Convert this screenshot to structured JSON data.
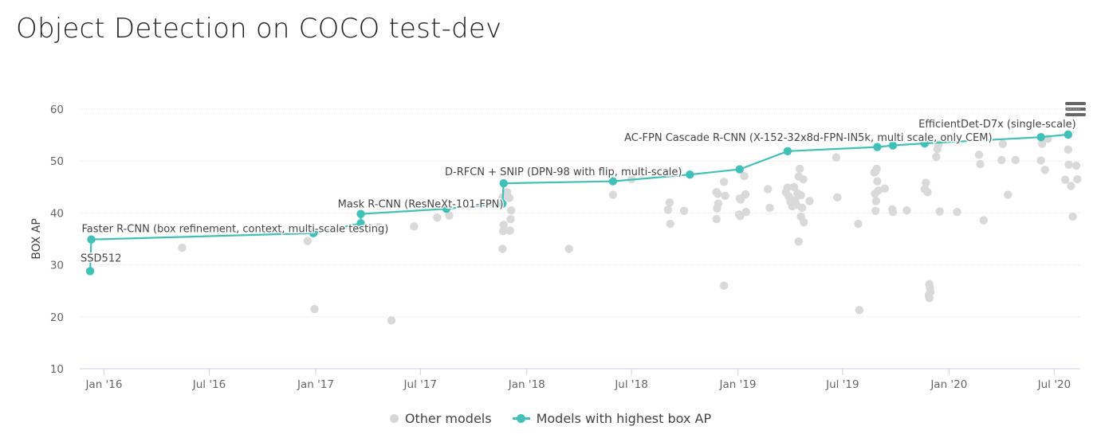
{
  "chart_data": {
    "type": "scatter",
    "title": "Object Detection on COCO test-dev",
    "ylabel": "BOX AP",
    "xlabel": "",
    "ylim": [
      10,
      60
    ],
    "yticks": [
      10,
      20,
      30,
      40,
      50,
      60
    ],
    "xlim": [
      "2015-11-20",
      "2020-08-15"
    ],
    "xticks": [
      {
        "date": "2016-01-01",
        "label": "Jan '16"
      },
      {
        "date": "2016-07-01",
        "label": "Jul '16"
      },
      {
        "date": "2017-01-01",
        "label": "Jan '17"
      },
      {
        "date": "2017-07-01",
        "label": "Jul '17"
      },
      {
        "date": "2018-01-01",
        "label": "Jan '18"
      },
      {
        "date": "2018-07-01",
        "label": "Jul '18"
      },
      {
        "date": "2019-01-01",
        "label": "Jan '19"
      },
      {
        "date": "2019-07-01",
        "label": "Jul '19"
      },
      {
        "date": "2020-01-01",
        "label": "Jan '20"
      },
      {
        "date": "2020-07-01",
        "label": "Jul '20"
      }
    ],
    "grid": true,
    "legend_position": "bottom-center",
    "series": [
      {
        "name": "Other models",
        "color": "#d9d9d9",
        "points": [
          [
            "2016-05-15",
            33.3
          ],
          [
            "2016-12-18",
            34.6
          ],
          [
            "2016-12-30",
            21.5
          ],
          [
            "2017-04-20",
            37.3
          ],
          [
            "2017-05-12",
            19.3
          ],
          [
            "2017-06-20",
            37.4
          ],
          [
            "2017-07-30",
            39.1
          ],
          [
            "2017-08-20",
            39.5
          ],
          [
            "2017-11-20",
            43.0
          ],
          [
            "2017-11-22",
            37.7
          ],
          [
            "2017-11-21",
            36.5
          ],
          [
            "2017-11-20",
            33.1
          ],
          [
            "2017-11-28",
            44.0
          ],
          [
            "2017-12-02",
            42.9
          ],
          [
            "2017-12-05",
            40.5
          ],
          [
            "2017-12-04",
            38.8
          ],
          [
            "2017-12-03",
            36.6
          ],
          [
            "2018-03-15",
            33.1
          ],
          [
            "2018-05-30",
            43.5
          ],
          [
            "2018-07-01",
            46.5
          ],
          [
            "2018-09-02",
            40.6
          ],
          [
            "2018-09-05",
            42.0
          ],
          [
            "2018-09-06",
            37.9
          ],
          [
            "2018-09-30",
            40.4
          ],
          [
            "2018-11-25",
            44.0
          ],
          [
            "2018-11-27",
            43.7
          ],
          [
            "2018-11-28",
            41.8
          ],
          [
            "2018-11-26",
            40.9
          ],
          [
            "2018-11-25",
            38.8
          ],
          [
            "2018-12-08",
            46.0
          ],
          [
            "2018-12-10",
            43.3
          ],
          [
            "2018-12-08",
            26.0
          ],
          [
            "2019-01-04",
            42.8
          ],
          [
            "2019-01-06",
            42.6
          ],
          [
            "2019-01-03",
            39.7
          ],
          [
            "2019-01-05",
            39.4
          ],
          [
            "2019-01-12",
            47.1
          ],
          [
            "2019-01-14",
            43.6
          ],
          [
            "2019-01-15",
            40.2
          ],
          [
            "2019-02-22",
            44.6
          ],
          [
            "2019-02-25",
            41.0
          ],
          [
            "2019-03-25",
            44.0
          ],
          [
            "2019-03-28",
            44.9
          ],
          [
            "2019-03-30",
            43.2
          ],
          [
            "2019-04-01",
            42.8
          ],
          [
            "2019-04-02",
            42.1
          ],
          [
            "2019-04-05",
            41.3
          ],
          [
            "2019-04-08",
            45.0
          ],
          [
            "2019-04-10",
            42.4
          ],
          [
            "2019-04-12",
            41.6
          ],
          [
            "2019-04-14",
            43.8
          ],
          [
            "2019-04-16",
            47.0
          ],
          [
            "2019-04-18",
            48.5
          ],
          [
            "2019-04-20",
            43.4
          ],
          [
            "2019-04-22",
            41.0
          ],
          [
            "2019-04-24",
            46.5
          ],
          [
            "2019-04-20",
            39.3
          ],
          [
            "2019-04-16",
            34.5
          ],
          [
            "2019-04-25",
            38.2
          ],
          [
            "2019-05-05",
            42.3
          ],
          [
            "2019-06-20",
            50.7
          ],
          [
            "2019-06-22",
            43.0
          ],
          [
            "2019-07-28",
            37.9
          ],
          [
            "2019-07-30",
            21.3
          ],
          [
            "2019-08-25",
            47.8
          ],
          [
            "2019-08-27",
            48.0
          ],
          [
            "2019-08-29",
            48.5
          ],
          [
            "2019-08-30",
            46.1
          ],
          [
            "2019-09-01",
            44.3
          ],
          [
            "2019-08-26",
            43.7
          ],
          [
            "2019-08-28",
            42.3
          ],
          [
            "2019-08-27",
            40.4
          ],
          [
            "2019-09-12",
            44.7
          ],
          [
            "2019-09-25",
            40.7
          ],
          [
            "2019-09-26",
            40.2
          ],
          [
            "2019-10-20",
            40.5
          ],
          [
            "2019-11-22",
            45.8
          ],
          [
            "2019-11-20",
            44.6
          ],
          [
            "2019-11-25",
            44.0
          ],
          [
            "2019-11-28",
            26.3
          ],
          [
            "2019-11-29",
            25.6
          ],
          [
            "2019-11-30",
            24.8
          ],
          [
            "2019-11-27",
            24.2
          ],
          [
            "2019-11-28",
            23.6
          ],
          [
            "2019-12-10",
            50.8
          ],
          [
            "2019-12-12",
            52.3
          ],
          [
            "2019-12-14",
            53.2
          ],
          [
            "2019-12-16",
            40.3
          ],
          [
            "2020-01-15",
            40.2
          ],
          [
            "2020-02-22",
            51.2
          ],
          [
            "2020-02-24",
            49.4
          ],
          [
            "2020-03-01",
            38.6
          ],
          [
            "2020-04-01",
            50.2
          ],
          [
            "2020-04-03",
            53.3
          ],
          [
            "2020-04-12",
            43.5
          ],
          [
            "2020-04-25",
            50.2
          ],
          [
            "2020-06-08",
            50.1
          ],
          [
            "2020-06-10",
            53.3
          ],
          [
            "2020-06-15",
            48.3
          ],
          [
            "2020-06-20",
            54.3
          ],
          [
            "2020-07-20",
            46.4
          ],
          [
            "2020-07-25",
            52.2
          ],
          [
            "2020-07-26",
            49.3
          ],
          [
            "2020-07-30",
            45.2
          ],
          [
            "2020-08-02",
            39.3
          ],
          [
            "2020-08-08",
            49.1
          ],
          [
            "2020-08-10",
            46.5
          ]
        ]
      },
      {
        "name": "Models with highest box AP",
        "color": "#3fc1b9",
        "points": [
          [
            "2015-12-08",
            28.8
          ],
          [
            "2015-12-10",
            34.9
          ],
          [
            "2016-12-28",
            36.1
          ],
          [
            "2017-03-20",
            38.0
          ],
          [
            "2017-03-20",
            39.8
          ],
          [
            "2017-08-15",
            40.8
          ],
          [
            "2017-11-20",
            41.8
          ],
          [
            "2017-11-22",
            45.7
          ],
          [
            "2018-05-30",
            46.1
          ],
          [
            "2018-10-10",
            47.4
          ],
          [
            "2019-01-04",
            48.4
          ],
          [
            "2019-03-28",
            51.9
          ],
          [
            "2019-08-30",
            52.7
          ],
          [
            "2019-09-26",
            53.0
          ],
          [
            "2019-11-20",
            53.4
          ],
          [
            "2020-06-08",
            54.6
          ],
          [
            "2020-07-25",
            55.1
          ]
        ]
      }
    ],
    "annotations": [
      {
        "text": "SSD512",
        "date": "2015-12-08",
        "y": 28.8
      },
      {
        "text": "Faster R-CNN (box refinement, context, multi-scale testing)",
        "date": "2015-12-10",
        "y": 34.9
      },
      {
        "text": "Mask R-CNN (ResNeXt-101-FPN)",
        "date": "2017-03-20",
        "y": 39.8
      },
      {
        "text": "D-RFCN + SNIP (DPN-98 with flip, multi-scale)",
        "date": "2017-11-22",
        "y": 45.7
      },
      {
        "text": "AC-FPN Cascade R-CNN (X-152-32x8d-FPN-IN5k, multi scale, only CEM)",
        "date": "2019-11-20",
        "y": 53.4
      },
      {
        "text": "EfficientDet-D7x (single-scale)",
        "date": "2020-07-25",
        "y": 55.1
      }
    ]
  },
  "legend": {
    "other_label": "Other models",
    "best_label": "Models with highest box AP"
  }
}
